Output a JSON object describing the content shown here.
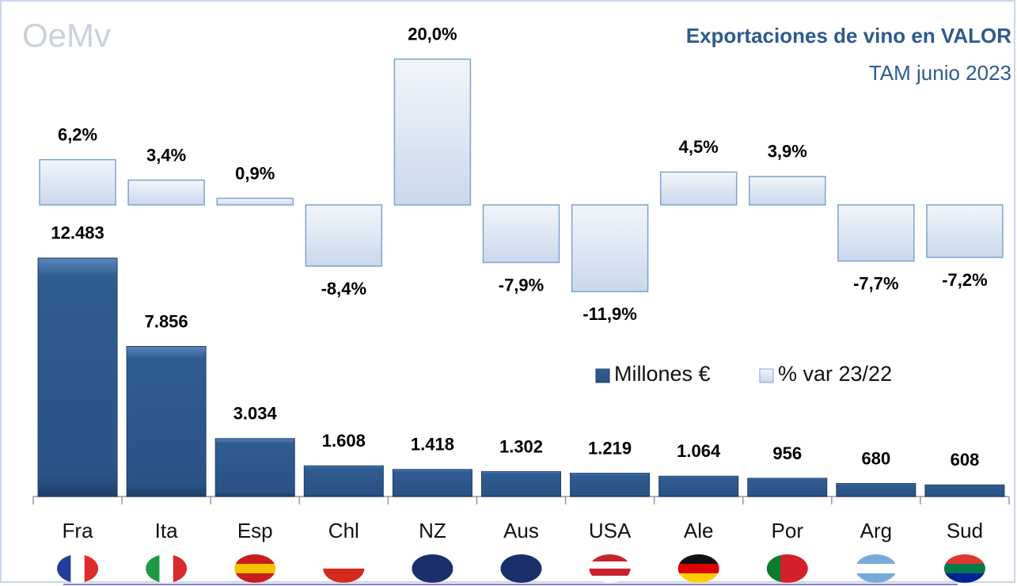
{
  "logo": "OeMv",
  "chart_data": {
    "type": "bar",
    "title": "Exportaciones de vino en VALOR",
    "subtitle": "TAM junio 2023",
    "categories": [
      "Fra",
      "Ita",
      "Esp",
      "Chl",
      "NZ",
      "Aus",
      "USA",
      "Ale",
      "Por",
      "Arg",
      "Sud"
    ],
    "series": [
      {
        "name": "Millones €",
        "color": "#2f5c91",
        "values": [
          12483,
          7856,
          3034,
          1608,
          1418,
          1302,
          1219,
          1064,
          956,
          680,
          608
        ],
        "value_labels": [
          "12.483",
          "7.856",
          "3.034",
          "1.608",
          "1.418",
          "1.302",
          "1.219",
          "1.064",
          "956",
          "680",
          "608"
        ]
      },
      {
        "name": "% var 23/22",
        "color": "#dbe5f2",
        "axis": "y2",
        "values": [
          6.2,
          3.4,
          0.9,
          -8.4,
          20.0,
          -7.9,
          -11.9,
          4.5,
          3.9,
          -7.7,
          -7.2
        ],
        "value_labels": [
          "6,2%",
          "3,4%",
          "0,9%",
          "-8,4%",
          "20,0%",
          "-7,9%",
          "-11,9%",
          "4,5%",
          "3,9%",
          "-7,7%",
          "-7,2%"
        ]
      }
    ],
    "ylim": [
      0,
      25000
    ],
    "y2lim": [
      -40,
      25.5
    ],
    "legend": "right"
  }
}
